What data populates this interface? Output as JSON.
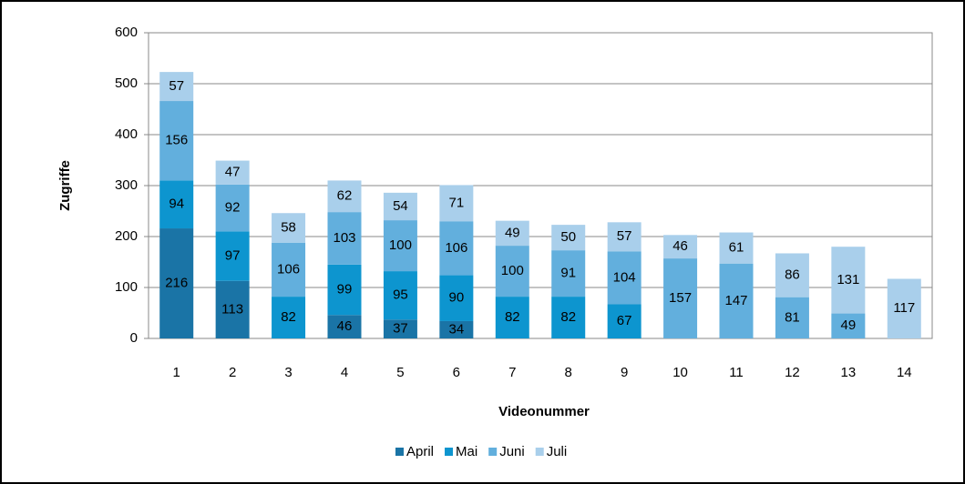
{
  "chart_data": {
    "type": "stacked_bar",
    "x_label": "Videonummer",
    "y_label": "Zugriffe",
    "categories": [
      "1",
      "2",
      "3",
      "4",
      "5",
      "6",
      "7",
      "8",
      "9",
      "10",
      "11",
      "12",
      "13",
      "14"
    ],
    "series": [
      {
        "name": "April",
        "color": "#1a74a6",
        "values": [
          216,
          113,
          null,
          46,
          37,
          34,
          null,
          null,
          null,
          null,
          null,
          null,
          null,
          null
        ]
      },
      {
        "name": "Mai",
        "color": "#0d95cf",
        "values": [
          94,
          97,
          82,
          99,
          95,
          90,
          82,
          82,
          67,
          null,
          null,
          null,
          null,
          null
        ]
      },
      {
        "name": "Juni",
        "color": "#62afdd",
        "values": [
          156,
          92,
          106,
          103,
          100,
          106,
          100,
          91,
          104,
          157,
          147,
          81,
          49,
          null
        ]
      },
      {
        "name": "Juli",
        "color": "#a9cfeb",
        "values": [
          57,
          47,
          58,
          62,
          54,
          71,
          49,
          50,
          57,
          46,
          61,
          86,
          131,
          117
        ]
      }
    ],
    "ylim": [
      0,
      600
    ],
    "yticks": [
      0,
      100,
      200,
      300,
      400,
      500,
      600
    ],
    "grid": true,
    "legend": "bottom"
  }
}
